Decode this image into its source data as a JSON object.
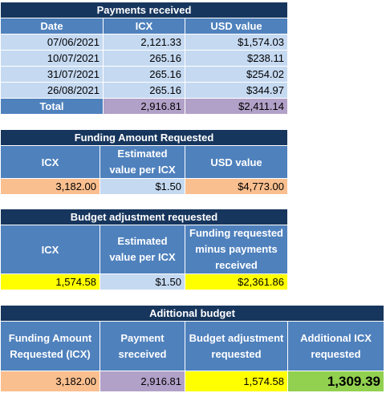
{
  "payments": {
    "title": "Payments received",
    "headers": [
      "Date",
      "ICX",
      "USD value"
    ],
    "rows": [
      [
        "07/06/2021",
        "2,121.33",
        "$1,574.03"
      ],
      [
        "10/07/2021",
        "265.16",
        "$238.11"
      ],
      [
        "31/07/2021",
        "265.16",
        "$254.02"
      ],
      [
        "26/08/2021",
        "265.16",
        "$344.97"
      ]
    ],
    "total_label": "Total",
    "total_icx": "2,916.81",
    "total_usd": "$2,411.14"
  },
  "funding": {
    "title": "Funding Amount Requested",
    "headers": [
      "ICX",
      "Estimated value per ICX",
      "USD value"
    ],
    "values": [
      "3,182.00",
      "$1.50",
      "$4,773.00"
    ]
  },
  "budget_adj": {
    "title": "Budget adjustment requested",
    "headers": [
      "ICX",
      "Estimated value per ICX",
      "Funding requested minus payments received"
    ],
    "values": [
      "1,574.58",
      "$1.50",
      "$2,361.86"
    ]
  },
  "additional": {
    "title": "Adittional budget",
    "headers": [
      "Funding Amount Requested (ICX)",
      "Payment sreceived",
      "Budget adjustment requested",
      "Additional ICX requested"
    ],
    "values": [
      "3,182.00",
      "2,916.81",
      "1,574.58",
      "1,309.39"
    ]
  },
  "colors": {
    "title_bg": "#17365d",
    "header_bg": "#4f81bd",
    "row_bg": "#c5d9f1",
    "peach": "#fabf8f",
    "yellow": "#ffff00",
    "purple": "#b1a0c7",
    "green": "#92d050"
  }
}
